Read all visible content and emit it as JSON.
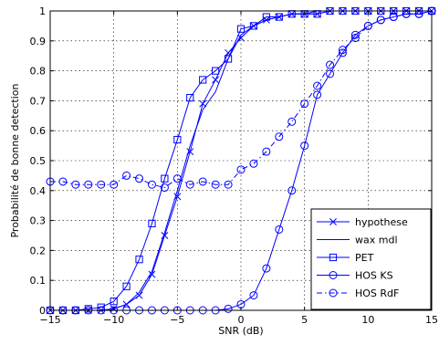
{
  "chart_data": {
    "type": "line",
    "title": "",
    "xlabel": "SNR (dB)",
    "ylabel": "Probabilité de bonne detection",
    "xlim": [
      -15,
      15
    ],
    "ylim": [
      0,
      1
    ],
    "xticks": [
      -15,
      -10,
      -5,
      0,
      5,
      10,
      15
    ],
    "yticks": [
      0,
      0.1,
      0.2,
      0.3,
      0.4,
      0.5,
      0.6,
      0.7,
      0.8,
      0.9,
      1
    ],
    "xtick_labels": [
      "−15",
      "−10",
      "−5",
      "0",
      "5",
      "10",
      "15"
    ],
    "ytick_labels": [
      "0",
      "0.1",
      "0.2",
      "0.3",
      "0.4",
      "0.5",
      "0.6",
      "0.7",
      "0.8",
      "0.9",
      "1"
    ],
    "grid": true,
    "legend_position": "bottom-right",
    "line_color": "#0000ff",
    "x": [
      -15,
      -14,
      -13,
      -12,
      -11,
      -10,
      -9,
      -8,
      -7,
      -6,
      -5,
      -4,
      -3,
      -2,
      -1,
      0,
      1,
      2,
      3,
      4,
      5,
      6,
      7,
      8,
      9,
      10,
      11,
      12,
      13,
      14,
      15
    ],
    "series": [
      {
        "name": "hypothese",
        "marker": "x",
        "dash": "solid",
        "values": [
          0,
          0,
          0,
          0,
          0,
          0.005,
          0.02,
          0.05,
          0.12,
          0.25,
          0.38,
          0.53,
          0.69,
          0.77,
          0.86,
          0.91,
          0.95,
          0.97,
          0.98,
          0.99,
          0.99,
          0.99,
          1,
          1,
          1,
          1,
          1,
          1,
          1,
          1,
          1
        ]
      },
      {
        "name": "wax mdl",
        "marker": "none",
        "dash": "solid",
        "values": [
          0,
          0,
          0,
          0,
          0,
          0.005,
          0.02,
          0.06,
          0.13,
          0.26,
          0.4,
          0.55,
          0.67,
          0.73,
          0.84,
          0.92,
          0.95,
          0.97,
          0.98,
          0.99,
          0.99,
          1,
          1,
          1,
          1,
          1,
          1,
          1,
          1,
          1,
          1
        ]
      },
      {
        "name": "PET",
        "marker": "square",
        "dash": "solid",
        "values": [
          0,
          0,
          0,
          0.005,
          0.01,
          0.03,
          0.08,
          0.17,
          0.29,
          0.44,
          0.57,
          0.71,
          0.77,
          0.8,
          0.84,
          0.94,
          0.95,
          0.98,
          0.98,
          0.99,
          0.99,
          0.99,
          1,
          1,
          1,
          1,
          1,
          1,
          1,
          1,
          1
        ]
      },
      {
        "name": "HOS KS",
        "marker": "circle",
        "dash": "solid",
        "values": [
          0,
          0,
          0,
          0,
          0,
          0,
          0,
          0,
          0,
          0,
          0,
          0,
          0,
          0,
          0.005,
          0.02,
          0.05,
          0.14,
          0.27,
          0.4,
          0.55,
          0.72,
          0.79,
          0.86,
          0.92,
          0.95,
          0.97,
          0.98,
          0.99,
          0.99,
          1
        ]
      },
      {
        "name": "HOS RdF",
        "marker": "circle",
        "dash": "dashdot",
        "values": [
          0.43,
          0.43,
          0.42,
          0.42,
          0.42,
          0.42,
          0.45,
          0.44,
          0.42,
          0.41,
          0.44,
          0.42,
          0.43,
          0.42,
          0.42,
          0.47,
          0.49,
          0.53,
          0.58,
          0.63,
          0.69,
          0.75,
          0.82,
          0.87,
          0.91,
          0.95,
          0.97,
          0.98,
          0.99,
          0.99,
          1
        ]
      }
    ]
  }
}
